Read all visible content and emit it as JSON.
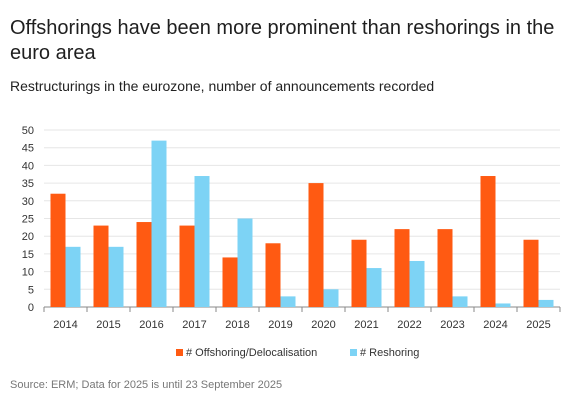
{
  "title": "Offshorings have been more prominent than reshorings in the euro area",
  "subtitle": "Restructurings in the eurozone, number of announcements recorded",
  "source": "Source: ERM; Data for 2025 is until 23 September 2025",
  "chart_data": {
    "type": "bar",
    "categories": [
      "2014",
      "2015",
      "2016",
      "2017",
      "2018",
      "2019",
      "2020",
      "2021",
      "2022",
      "2023",
      "2024",
      "2025"
    ],
    "series": [
      {
        "name": "# Offshoring/Delocalisation",
        "color": "#FF5A12",
        "values": [
          32,
          23,
          24,
          23,
          14,
          18,
          35,
          19,
          22,
          22,
          37,
          19
        ]
      },
      {
        "name": "# Reshoring",
        "color": "#7DD3F5",
        "values": [
          17,
          17,
          47,
          37,
          25,
          3,
          5,
          11,
          13,
          3,
          1,
          2
        ]
      }
    ],
    "yticks": [
      "0",
      "5",
      "10",
      "15",
      "20",
      "25",
      "30",
      "35",
      "40",
      "45",
      "50"
    ],
    "ylim": [
      0,
      50
    ],
    "grid": true,
    "legend": "bottom-center"
  }
}
